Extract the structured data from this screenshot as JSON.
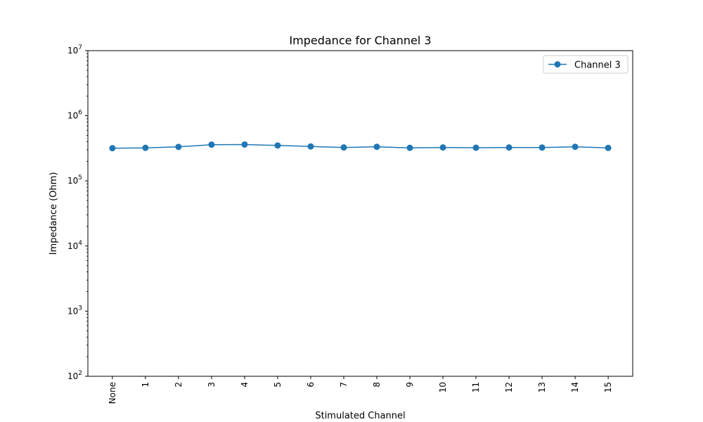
{
  "chart_data": {
    "type": "line",
    "title": "Impedance for Channel 3",
    "xlabel": "Stimulated Channel",
    "ylabel": "Impedance (Ohm)",
    "categories": [
      "None",
      "1",
      "2",
      "3",
      "4",
      "5",
      "6",
      "7",
      "8",
      "9",
      "10",
      "11",
      "12",
      "13",
      "14",
      "15"
    ],
    "y_scale": "log",
    "ylim": [
      100,
      10000000
    ],
    "y_ticks": [
      {
        "base": "10",
        "exp": "2"
      },
      {
        "base": "10",
        "exp": "3"
      },
      {
        "base": "10",
        "exp": "4"
      },
      {
        "base": "10",
        "exp": "5"
      },
      {
        "base": "10",
        "exp": "6"
      },
      {
        "base": "10",
        "exp": "7"
      }
    ],
    "series": [
      {
        "name": "Channel 3",
        "color": "#1f77b4",
        "marker": "circle",
        "values": [
          318000,
          322000,
          333000,
          360000,
          362000,
          350000,
          338000,
          326000,
          334000,
          322000,
          326000,
          323000,
          326000,
          325000,
          334000,
          321000
        ]
      }
    ],
    "legend_position": "top-right",
    "grid": false
  }
}
